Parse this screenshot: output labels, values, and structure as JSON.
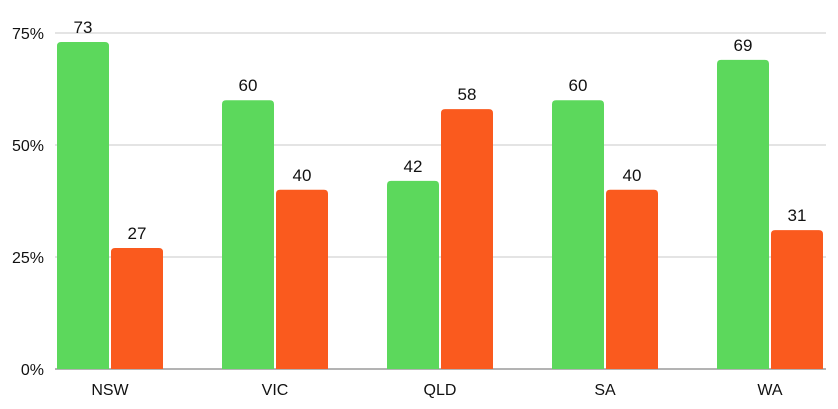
{
  "chart_data": {
    "type": "bar",
    "categories": [
      "NSW",
      "VIC",
      "QLD",
      "SA",
      "WA"
    ],
    "series": [
      {
        "values": [
          73,
          60,
          42,
          60,
          69
        ],
        "color": "#5cd85c"
      },
      {
        "values": [
          27,
          40,
          58,
          40,
          31
        ],
        "color": "#fa5a1e"
      }
    ],
    "ylim": [
      0,
      75
    ],
    "yticks": [
      0,
      25,
      50,
      75
    ],
    "ytick_labels": [
      "0%",
      "25%",
      "50%",
      "75%"
    ],
    "grid": true,
    "grid_color": "#c8c8c8",
    "axis_color": "#9a9a9a",
    "data_labels": true
  }
}
